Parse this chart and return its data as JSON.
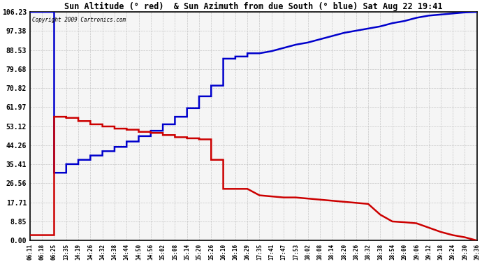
{
  "title": "Sun Altitude (° red)  & Sun Azimuth from due South (° blue) Sat Aug 22 19:41",
  "copyright": "Copyright 2009 Cartronics.com",
  "yticks": [
    0.0,
    8.85,
    17.71,
    26.56,
    35.41,
    44.26,
    53.12,
    61.97,
    70.82,
    79.68,
    88.53,
    97.38,
    106.23
  ],
  "ymin": 0.0,
  "ymax": 106.23,
  "bg_color": "#ffffff",
  "grid_color": "#bbbbbb",
  "blue_color": "#0000cc",
  "red_color": "#cc0000",
  "xtick_labels": [
    "06:11",
    "06:18",
    "06:25",
    "13:35",
    "14:19",
    "14:26",
    "14:32",
    "14:38",
    "14:44",
    "14:50",
    "14:56",
    "15:02",
    "15:08",
    "15:14",
    "15:20",
    "15:26",
    "16:10",
    "16:16",
    "16:29",
    "17:35",
    "17:41",
    "17:47",
    "17:53",
    "18:02",
    "18:08",
    "18:14",
    "18:20",
    "18:26",
    "18:32",
    "18:38",
    "18:54",
    "19:00",
    "19:06",
    "19:12",
    "19:18",
    "19:24",
    "19:30",
    "19:36"
  ],
  "blue_data_x": [
    0,
    1,
    2,
    2,
    3,
    3,
    4,
    4,
    5,
    5,
    6,
    6,
    7,
    7,
    8,
    8,
    9,
    9,
    10,
    10,
    11,
    11,
    12,
    12,
    13,
    13,
    14,
    14,
    15,
    15,
    16,
    16,
    17,
    17,
    18,
    18,
    19,
    20,
    21,
    22,
    23,
    24,
    25,
    26,
    27,
    28,
    29,
    30,
    31,
    32,
    33,
    34,
    35,
    36,
    37
  ],
  "blue_data_y": [
    106.23,
    106.23,
    106.23,
    31.5,
    31.5,
    35.5,
    35.5,
    37.5,
    37.5,
    39.5,
    39.5,
    41.5,
    41.5,
    43.5,
    43.5,
    46.0,
    46.0,
    48.5,
    48.5,
    51.0,
    51.0,
    54.0,
    54.0,
    57.5,
    57.5,
    61.5,
    61.5,
    67.0,
    67.0,
    72.0,
    72.0,
    84.5,
    84.5,
    85.5,
    85.5,
    87.0,
    87.0,
    88.0,
    89.5,
    91.0,
    92.0,
    93.5,
    95.0,
    96.5,
    97.5,
    98.5,
    99.5,
    101.0,
    102.0,
    103.5,
    104.5,
    105.0,
    105.5,
    106.0,
    106.23
  ],
  "red_data_x": [
    0,
    1,
    2,
    2,
    3,
    3,
    4,
    4,
    5,
    5,
    6,
    6,
    7,
    7,
    8,
    8,
    9,
    9,
    10,
    10,
    11,
    11,
    12,
    12,
    13,
    13,
    14,
    14,
    15,
    15,
    16,
    16,
    17,
    17,
    18,
    19,
    20,
    21,
    22,
    23,
    24,
    25,
    26,
    27,
    28,
    29,
    30,
    31,
    32,
    33,
    34,
    35,
    36,
    37
  ],
  "red_data_y": [
    2.5,
    2.5,
    2.5,
    57.5,
    57.5,
    57.0,
    57.0,
    55.5,
    55.5,
    54.0,
    54.0,
    53.0,
    53.0,
    52.0,
    52.0,
    51.5,
    51.5,
    50.5,
    50.5,
    50.0,
    50.0,
    49.0,
    49.0,
    48.0,
    48.0,
    47.5,
    47.5,
    47.0,
    47.0,
    37.5,
    37.5,
    24.0,
    24.0,
    24.0,
    24.0,
    21.0,
    20.5,
    20.0,
    20.0,
    19.5,
    19.0,
    18.5,
    18.0,
    17.5,
    17.0,
    12.0,
    8.85,
    8.5,
    8.0,
    6.0,
    4.0,
    2.5,
    1.5,
    0.0
  ]
}
